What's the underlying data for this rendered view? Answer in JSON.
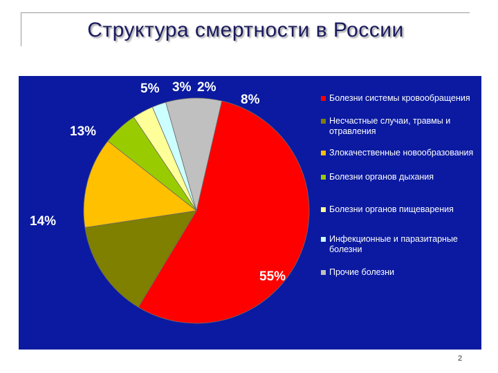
{
  "slide": {
    "title": "Структура смертности в России",
    "page_number": "2"
  },
  "colors": {
    "panel_background": "#0b1aa0",
    "title_text": "#1a1a5e"
  },
  "chart_data": {
    "type": "pie",
    "title": "",
    "legend_position": "right",
    "slices": [
      {
        "label": "Болезни системы кровообращения",
        "value": 55,
        "display": "55%",
        "color": "#ff0000"
      },
      {
        "label": "Несчастные случаи, травмы и отравления",
        "value": 14,
        "display": "14%",
        "color": "#7f7f00"
      },
      {
        "label": "Злокачественные новообразования",
        "value": 13,
        "display": "13%",
        "color": "#ffc000"
      },
      {
        "label": "Болезни органов дыхания",
        "value": 5,
        "display": "5%",
        "color": "#99cc00"
      },
      {
        "label": "Болезни органов пищеварения",
        "value": 3,
        "display": "3%",
        "color": "#ffff99"
      },
      {
        "label": "Инфекционные и паразитарные болезни",
        "value": 2,
        "display": "2%",
        "color": "#ccffff"
      },
      {
        "label": "Прочие болезни",
        "value": 8,
        "display": "8%",
        "color": "#c0c0c0"
      }
    ]
  }
}
